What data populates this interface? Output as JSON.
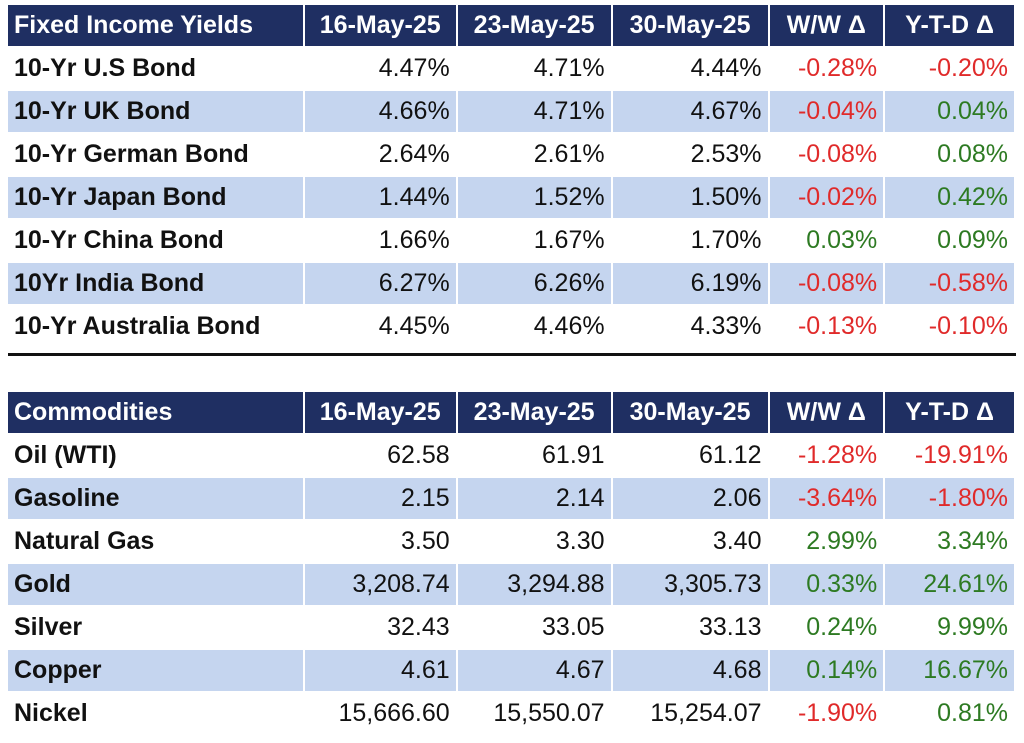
{
  "bonds": {
    "headers": [
      "Fixed Income Yields",
      "16-May-25",
      "23-May-25",
      "30-May-25",
      "W/W Δ",
      "Y-T-D Δ"
    ],
    "rows": [
      [
        "10-Yr U.S Bond",
        "4.47%",
        "4.71%",
        "4.44%",
        "-0.28%",
        "-0.20%"
      ],
      [
        "10-Yr UK Bond",
        "4.66%",
        "4.71%",
        "4.67%",
        "-0.04%",
        "0.04%"
      ],
      [
        "10-Yr German Bond",
        "2.64%",
        "2.61%",
        "2.53%",
        "-0.08%",
        "0.08%"
      ],
      [
        "10-Yr Japan Bond",
        "1.44%",
        "1.52%",
        "1.50%",
        "-0.02%",
        "0.42%"
      ],
      [
        "10-Yr China Bond",
        "1.66%",
        "1.67%",
        "1.70%",
        "0.03%",
        "0.09%"
      ],
      [
        "10Yr India Bond",
        "6.27%",
        "6.26%",
        "6.19%",
        "-0.08%",
        "-0.58%"
      ],
      [
        "10-Yr Australia Bond",
        "4.45%",
        "4.46%",
        "4.33%",
        "-0.13%",
        "-0.10%"
      ]
    ]
  },
  "commodities": {
    "headers": [
      "Commodities",
      "16-May-25",
      "23-May-25",
      "30-May-25",
      "W/W Δ",
      "Y-T-D Δ"
    ],
    "rows": [
      [
        "Oil (WTI)",
        "62.58",
        "61.91",
        "61.12",
        "-1.28%",
        "-19.91%"
      ],
      [
        "Gasoline",
        "2.15",
        "2.14",
        "2.06",
        "-3.64%",
        "-1.80%"
      ],
      [
        "Natural Gas",
        "3.50",
        "3.30",
        "3.40",
        "2.99%",
        "3.34%"
      ],
      [
        "Gold",
        "3,208.74",
        "3,294.88",
        "3,305.73",
        "0.33%",
        "24.61%"
      ],
      [
        "Silver",
        "32.43",
        "33.05",
        "33.13",
        "0.24%",
        "9.99%"
      ],
      [
        "Copper",
        "4.61",
        "4.67",
        "4.68",
        "0.14%",
        "16.67%"
      ],
      [
        "Nickel",
        "15,666.60",
        "15,550.07",
        "15,254.07",
        "-1.90%",
        "0.81%"
      ]
    ]
  },
  "colors": {
    "header_bg": "#1f2f62",
    "header_text": "#ffffff",
    "row_shade": "#c5d5ef",
    "negative": "#e02a2a",
    "positive": "#2d7a22"
  }
}
